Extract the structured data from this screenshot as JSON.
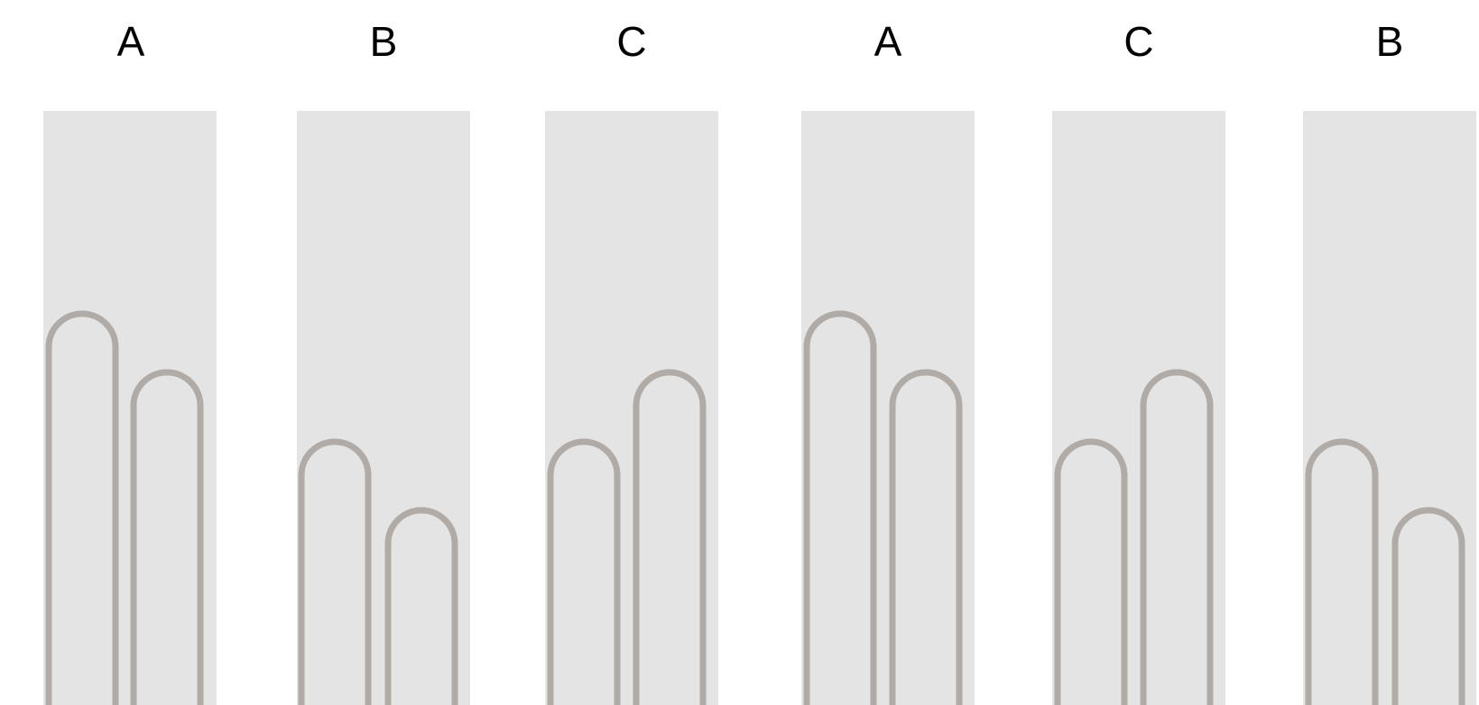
{
  "colors": {
    "background": "#ffffff",
    "panel": "#e4e4e4",
    "outline": "#b0aba6",
    "label": "#000000"
  },
  "panels": [
    {
      "label": "A",
      "fingers": [
        "tall",
        "medium"
      ]
    },
    {
      "label": "B",
      "fingers": [
        "short",
        "shortest"
      ]
    },
    {
      "label": "C",
      "fingers": [
        "short",
        "medium"
      ]
    },
    {
      "label": "A",
      "fingers": [
        "tall",
        "medium"
      ]
    },
    {
      "label": "C",
      "fingers": [
        "short",
        "medium"
      ]
    },
    {
      "label": "B",
      "fingers": [
        "short",
        "shortest"
      ]
    }
  ]
}
